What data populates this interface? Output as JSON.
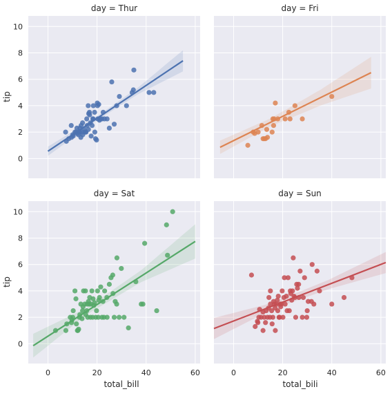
{
  "figure": {
    "xlabel": "total_bill",
    "xlabel2": "total_bili",
    "ylabel": "tip"
  },
  "chart_data": [
    {
      "type": "scatter",
      "title": "day = Thur",
      "color": "#4c72b0",
      "xlim": [
        -8,
        62
      ],
      "ylim": [
        -1.5,
        10.8
      ],
      "xticks": [
        0,
        20,
        40,
        60
      ],
      "yticks": [
        0,
        2,
        4,
        6,
        8,
        10
      ],
      "fit": {
        "x0": 0,
        "y0": 0.55,
        "x1": 55,
        "y1": 7.4
      },
      "band_halfwidth": [
        0.35,
        0.15,
        0.25,
        0.8
      ],
      "points": [
        [
          7.5,
          1.3
        ],
        [
          8.5,
          1.5
        ],
        [
          9.6,
          1.6
        ],
        [
          10.1,
          1.8
        ],
        [
          10.3,
          1.7
        ],
        [
          11.0,
          2.0
        ],
        [
          11.5,
          2.0
        ],
        [
          12.4,
          1.8
        ],
        [
          12.7,
          2.0
        ],
        [
          13.0,
          2.0
        ],
        [
          13.0,
          2.3
        ],
        [
          13.4,
          1.6
        ],
        [
          13.5,
          2.5
        ],
        [
          14.1,
          2.7
        ],
        [
          14.2,
          1.8
        ],
        [
          15.0,
          2.0
        ],
        [
          15.4,
          2.0
        ],
        [
          15.5,
          2.0
        ],
        [
          16.0,
          2.5
        ],
        [
          16.5,
          2.2
        ],
        [
          16.6,
          3.4
        ],
        [
          16.9,
          3.5
        ],
        [
          17.0,
          3.3
        ],
        [
          17.3,
          2.7
        ],
        [
          18.0,
          2.5
        ],
        [
          18.3,
          3.0
        ],
        [
          18.4,
          3.0
        ],
        [
          19.0,
          3.5
        ],
        [
          19.4,
          1.5
        ],
        [
          19.8,
          1.4
        ],
        [
          20.3,
          3.0
        ],
        [
          20.7,
          4.1
        ],
        [
          21.0,
          2.9
        ],
        [
          22.0,
          3.0
        ],
        [
          22.5,
          3.5
        ],
        [
          23.0,
          3.0
        ],
        [
          24.1,
          3.0
        ],
        [
          25.0,
          2.3
        ],
        [
          27.0,
          2.6
        ],
        [
          28.0,
          4.0
        ],
        [
          29.1,
          4.7
        ],
        [
          32.0,
          4.0
        ],
        [
          34.3,
          5.0
        ],
        [
          34.8,
          5.2
        ],
        [
          35.0,
          6.7
        ],
        [
          41.2,
          5.0
        ],
        [
          43.1,
          5.0
        ],
        [
          16.4,
          4.0
        ],
        [
          18.5,
          4.0
        ],
        [
          20.1,
          4.2
        ],
        [
          26.0,
          5.8
        ],
        [
          7.2,
          2.0
        ],
        [
          9.5,
          2.5
        ],
        [
          13.9,
          2.0
        ],
        [
          14.8,
          2.2
        ],
        [
          15.8,
          3.0
        ],
        [
          17.6,
          1.7
        ],
        [
          19.1,
          2.0
        ],
        [
          20.2,
          4.0
        ],
        [
          21.3,
          3.0
        ],
        [
          12.0,
          1.9
        ],
        [
          11.8,
          2.3
        ]
      ]
    },
    {
      "type": "scatter",
      "title": "day = Fri",
      "color": "#dd8452",
      "xlim": [
        -8,
        62
      ],
      "ylim": [
        -1.5,
        10.8
      ],
      "xticks": [
        0,
        20,
        40,
        60
      ],
      "yticks": [
        0,
        2,
        4,
        6,
        8,
        10
      ],
      "fit": {
        "x0": -5.5,
        "y0": 0.85,
        "x1": 56,
        "y1": 6.5
      },
      "band_halfwidth": [
        0.5,
        0.3,
        0.6,
        1.2
      ],
      "points": [
        [
          5.8,
          1.0
        ],
        [
          8.6,
          1.9
        ],
        [
          10.0,
          2.0
        ],
        [
          11.5,
          2.5
        ],
        [
          12.0,
          1.5
        ],
        [
          13.0,
          1.5
        ],
        [
          13.5,
          2.2
        ],
        [
          13.8,
          1.6
        ],
        [
          15.7,
          2.0
        ],
        [
          16.0,
          3.0
        ],
        [
          16.3,
          2.5
        ],
        [
          16.5,
          3.0
        ],
        [
          17.0,
          4.2
        ],
        [
          18.0,
          3.0
        ],
        [
          21.0,
          3.0
        ],
        [
          22.5,
          3.5
        ],
        [
          23.0,
          3.0
        ],
        [
          25.0,
          4.0
        ],
        [
          28.0,
          3.0
        ],
        [
          40.0,
          4.7
        ],
        [
          8.0,
          2.0
        ],
        [
          12.5,
          1.5
        ]
      ]
    },
    {
      "type": "scatter",
      "title": "day = Sat",
      "color": "#55a868",
      "xlim": [
        -8,
        62
      ],
      "ylim": [
        -1.5,
        10.8
      ],
      "xticks": [
        0,
        20,
        40,
        60
      ],
      "yticks": [
        0,
        2,
        4,
        6,
        8,
        10
      ],
      "fit": {
        "x0": -6,
        "y0": -0.15,
        "x1": 60,
        "y1": 7.75
      },
      "band_halfwidth": [
        0.9,
        0.25,
        0.45,
        1.3
      ],
      "points": [
        [
          3.1,
          1.0
        ],
        [
          7.3,
          1.0
        ],
        [
          7.7,
          1.5
        ],
        [
          9.1,
          2.0
        ],
        [
          9.6,
          1.6
        ],
        [
          10.1,
          2.0
        ],
        [
          10.3,
          2.5
        ],
        [
          11.4,
          3.4
        ],
        [
          11.6,
          1.5
        ],
        [
          12.2,
          1.0
        ],
        [
          12.5,
          1.1
        ],
        [
          12.8,
          2.0
        ],
        [
          13.0,
          2.2
        ],
        [
          13.4,
          3.0
        ],
        [
          13.9,
          1.9
        ],
        [
          14.1,
          2.5
        ],
        [
          14.3,
          2.8
        ],
        [
          15.0,
          3.0
        ],
        [
          15.4,
          2.2
        ],
        [
          15.8,
          2.5
        ],
        [
          16.0,
          3.0
        ],
        [
          16.2,
          2.0
        ],
        [
          16.5,
          3.2
        ],
        [
          17.0,
          3.5
        ],
        [
          17.3,
          2.0
        ],
        [
          17.5,
          3.0
        ],
        [
          17.9,
          4.0
        ],
        [
          18.2,
          2.0
        ],
        [
          18.4,
          3.4
        ],
        [
          18.7,
          2.9
        ],
        [
          19.0,
          3.1
        ],
        [
          19.5,
          2.0
        ],
        [
          19.8,
          2.5
        ],
        [
          20.2,
          4.0
        ],
        [
          20.7,
          3.3
        ],
        [
          21.0,
          3.5
        ],
        [
          21.5,
          4.3
        ],
        [
          22.0,
          2.0
        ],
        [
          22.4,
          3.2
        ],
        [
          23.1,
          4.0
        ],
        [
          24.0,
          3.5
        ],
        [
          24.1,
          2.0
        ],
        [
          25.0,
          4.5
        ],
        [
          25.7,
          5.0
        ],
        [
          26.4,
          5.2
        ],
        [
          27.0,
          2.0
        ],
        [
          27.4,
          3.2
        ],
        [
          28.0,
          3.0
        ],
        [
          28.1,
          6.5
        ],
        [
          29.0,
          2.0
        ],
        [
          31.0,
          2.0
        ],
        [
          32.8,
          1.2
        ],
        [
          35.8,
          4.7
        ],
        [
          38.0,
          3.0
        ],
        [
          38.7,
          3.0
        ],
        [
          39.4,
          7.6
        ],
        [
          44.3,
          2.5
        ],
        [
          48.3,
          9.0
        ],
        [
          48.7,
          6.7
        ],
        [
          50.8,
          10.0
        ],
        [
          11.0,
          4.0
        ],
        [
          14.5,
          4.0
        ],
        [
          26.5,
          3.8
        ],
        [
          29.9,
          5.7
        ],
        [
          12.0,
          1.0
        ],
        [
          20.5,
          2.0
        ],
        [
          15.3,
          4.0
        ],
        [
          9.8,
          1.8
        ],
        [
          22.8,
          2.0
        ],
        [
          16.8,
          3.0
        ]
      ]
    },
    {
      "type": "scatter",
      "title": "day = Sun",
      "color": "#c44e52",
      "xlim": [
        -8,
        62
      ],
      "ylim": [
        -1.5,
        10.8
      ],
      "xticks": [
        0,
        20,
        40,
        60
      ],
      "yticks": [
        0,
        2,
        4,
        6,
        8,
        10
      ],
      "fit": {
        "x0": -8,
        "y0": 1.15,
        "x1": 62,
        "y1": 6.15
      },
      "band_halfwidth": [
        0.8,
        0.25,
        0.35,
        0.8
      ],
      "points": [
        [
          7.3,
          5.2
        ],
        [
          8.8,
          1.3
        ],
        [
          9.7,
          1.7
        ],
        [
          9.9,
          1.6
        ],
        [
          10.3,
          2.0
        ],
        [
          10.6,
          2.6
        ],
        [
          12.0,
          1.0
        ],
        [
          12.5,
          2.0
        ],
        [
          13.0,
          1.6
        ],
        [
          13.3,
          2.5
        ],
        [
          13.8,
          2.0
        ],
        [
          14.2,
          2.7
        ],
        [
          14.8,
          2.0
        ],
        [
          15.0,
          3.0
        ],
        [
          15.5,
          2.5
        ],
        [
          15.7,
          1.5
        ],
        [
          16.0,
          2.0
        ],
        [
          16.3,
          3.2
        ],
        [
          16.9,
          2.7
        ],
        [
          17.0,
          1.0
        ],
        [
          17.5,
          3.0
        ],
        [
          18.0,
          2.5
        ],
        [
          18.2,
          3.6
        ],
        [
          18.7,
          2.0
        ],
        [
          19.0,
          3.0
        ],
        [
          19.4,
          3.0
        ],
        [
          19.8,
          4.0
        ],
        [
          20.1,
          2.0
        ],
        [
          20.5,
          3.5
        ],
        [
          20.7,
          5.0
        ],
        [
          21.0,
          3.0
        ],
        [
          21.5,
          3.6
        ],
        [
          22.2,
          5.0
        ],
        [
          22.7,
          2.5
        ],
        [
          23.1,
          4.0
        ],
        [
          23.7,
          3.3
        ],
        [
          24.0,
          4.0
        ],
        [
          24.3,
          6.5
        ],
        [
          24.6,
          3.6
        ],
        [
          25.0,
          3.5
        ],
        [
          25.3,
          2.0
        ],
        [
          25.7,
          4.5
        ],
        [
          26.0,
          4.2
        ],
        [
          26.6,
          3.5
        ],
        [
          27.1,
          5.5
        ],
        [
          28.0,
          2.0
        ],
        [
          28.4,
          3.5
        ],
        [
          28.9,
          5.0
        ],
        [
          29.8,
          2.0
        ],
        [
          30.4,
          3.2
        ],
        [
          31.7,
          3.2
        ],
        [
          32.0,
          6.0
        ],
        [
          32.7,
          3.0
        ],
        [
          34.0,
          5.5
        ],
        [
          35.0,
          4.0
        ],
        [
          40.0,
          3.0
        ],
        [
          45.0,
          3.5
        ],
        [
          48.2,
          5.0
        ],
        [
          18.5,
          2.0
        ],
        [
          21.8,
          2.5
        ],
        [
          16.6,
          3.0
        ],
        [
          11.2,
          2.0
        ],
        [
          14.4,
          3.5
        ],
        [
          19.2,
          2.8
        ],
        [
          23.3,
          3.8
        ],
        [
          12.0,
          2.4
        ],
        [
          17.8,
          3.3
        ],
        [
          26.5,
          4.5
        ],
        [
          30.0,
          2.5
        ],
        [
          15.0,
          4.0
        ]
      ]
    }
  ]
}
